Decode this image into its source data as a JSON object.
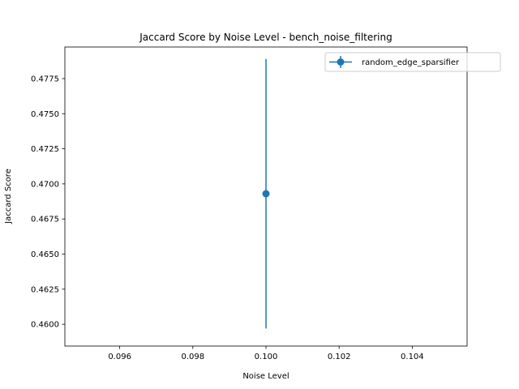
{
  "chart_data": {
    "type": "scatter",
    "title": "Jaccard Score by Noise Level - bench_noise_filtering",
    "xlabel": "Noise Level",
    "ylabel": "Jaccard Score",
    "xlim": [
      0.0945,
      0.1055
    ],
    "ylim": [
      0.45845,
      0.47975
    ],
    "xticks": [
      "0.096",
      "0.098",
      "0.100",
      "0.102",
      "0.104"
    ],
    "xtick_values": [
      0.096,
      0.098,
      0.1,
      0.102,
      0.104
    ],
    "yticks": [
      "0.4600",
      "0.4625",
      "0.4650",
      "0.4675",
      "0.4700",
      "0.4725",
      "0.4750",
      "0.4775"
    ],
    "ytick_values": [
      0.46,
      0.4625,
      0.465,
      0.4675,
      0.47,
      0.4725,
      0.475,
      0.4775
    ],
    "legend_position": "top-right",
    "grid": false,
    "series": [
      {
        "name": "random_edge_sparsifier",
        "color": "#1f77b4",
        "points": [
          {
            "x": 0.1,
            "y": 0.4693,
            "yerr_low": 0.4597,
            "yerr_high": 0.4789
          }
        ]
      }
    ]
  }
}
